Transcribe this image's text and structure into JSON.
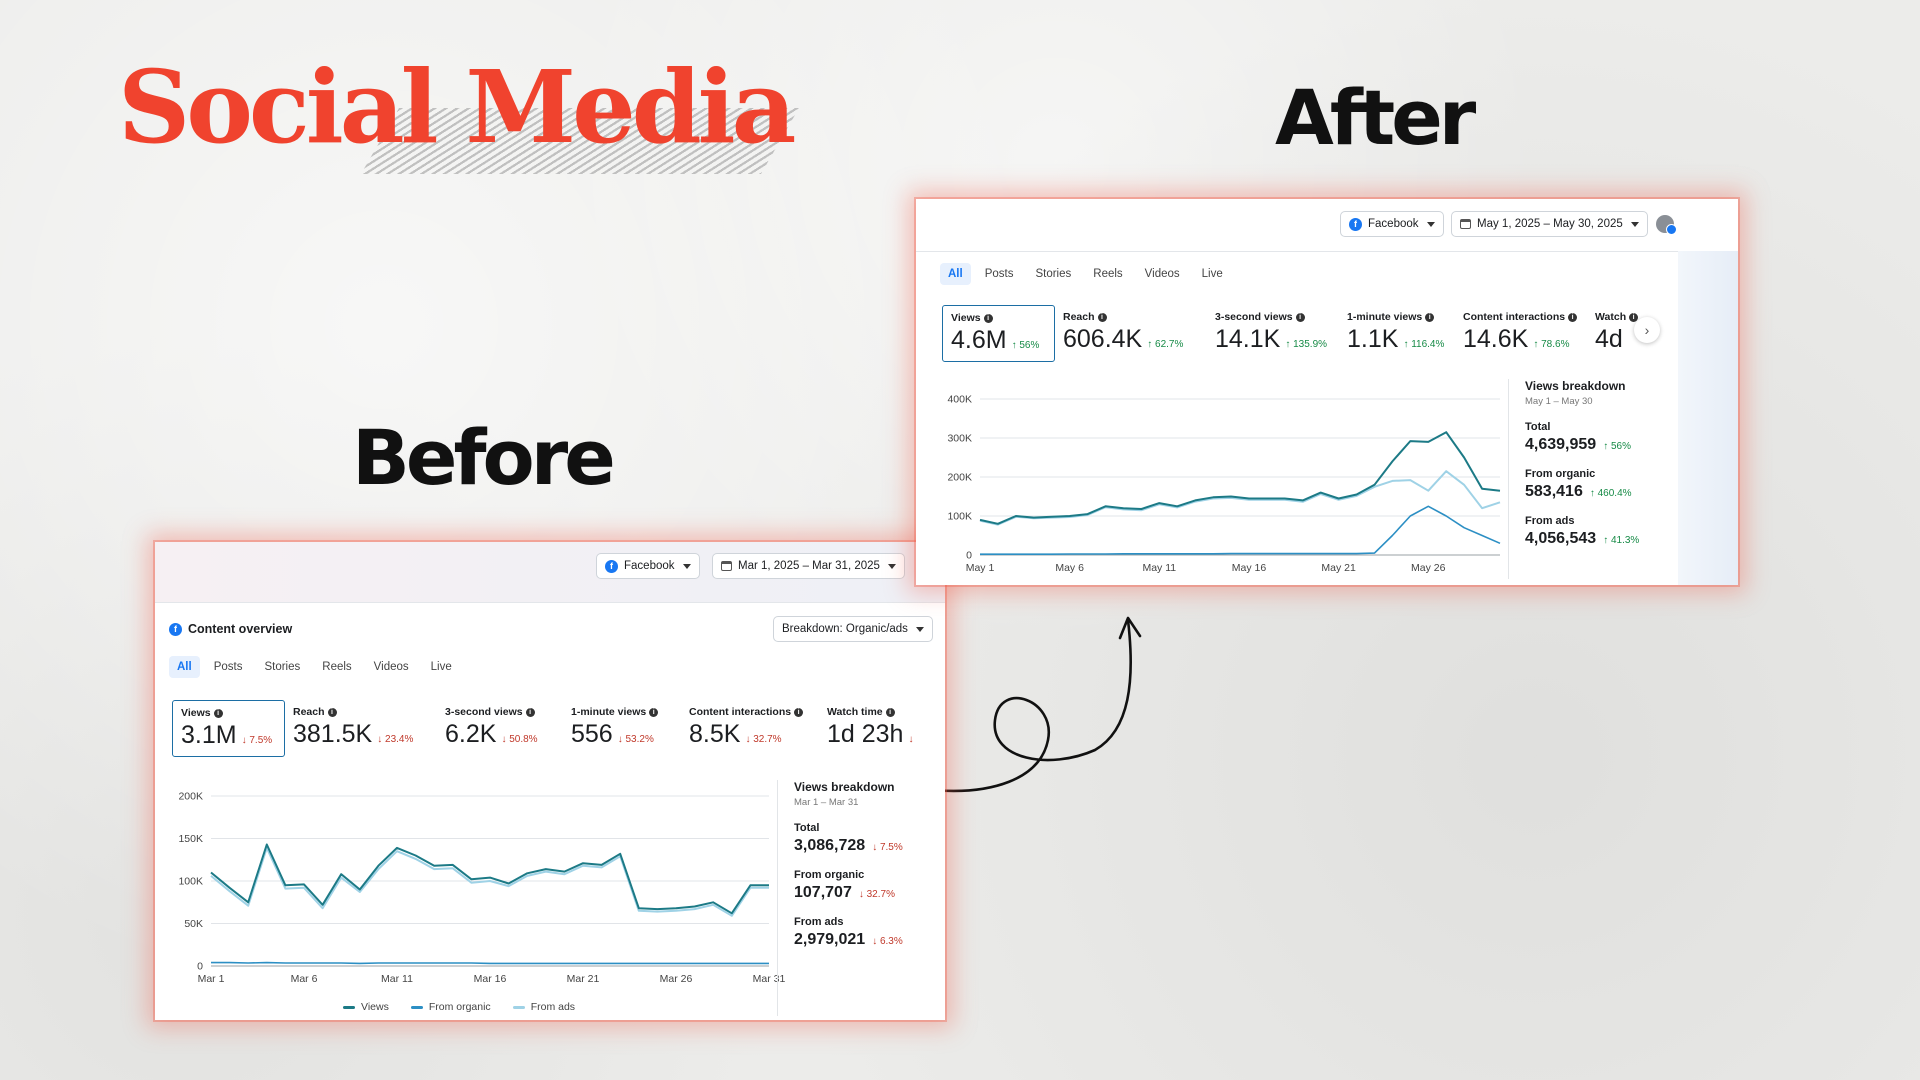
{
  "headline": "Social Media",
  "after_label": "After",
  "before_label": "Before",
  "colors": {
    "accent": "#f0432e",
    "views": "#1c7a86",
    "organic": "#2c8fc4",
    "ads": "#9fd2e6"
  },
  "before": {
    "platform": "Facebook",
    "date_range": "Mar 1, 2025 – Mar 31, 2025",
    "section_title": "Content overview",
    "breakdown_select": "Breakdown: Organic/ads",
    "tabs": [
      "All",
      "Posts",
      "Stories",
      "Reels",
      "Videos",
      "Live"
    ],
    "metrics": [
      {
        "label": "Views",
        "value": "3.1M",
        "change": "↓ 7.5%",
        "dir": "down"
      },
      {
        "label": "Reach",
        "value": "381.5K",
        "change": "↓ 23.4%",
        "dir": "down"
      },
      {
        "label": "3-second views",
        "value": "6.2K",
        "change": "↓ 50.8%",
        "dir": "down"
      },
      {
        "label": "1-minute views",
        "value": "556",
        "change": "↓ 53.2%",
        "dir": "down"
      },
      {
        "label": "Content interactions",
        "value": "8.5K",
        "change": "↓ 32.7%",
        "dir": "down"
      },
      {
        "label": "Watch time",
        "value": "1d 23h",
        "change": "↓",
        "dir": "down"
      }
    ],
    "breakdown": {
      "title": "Views breakdown",
      "range": "Mar 1 – Mar 31",
      "items": [
        {
          "label": "Total",
          "value": "3,086,728",
          "change": "↓ 7.5%",
          "dir": "down"
        },
        {
          "label": "From organic",
          "value": "107,707",
          "change": "↓ 32.7%",
          "dir": "down"
        },
        {
          "label": "From ads",
          "value": "2,979,021",
          "change": "↓ 6.3%",
          "dir": "down"
        }
      ]
    },
    "legend": [
      "Views",
      "From organic",
      "From ads"
    ]
  },
  "after": {
    "platform": "Facebook",
    "date_range": "May 1, 2025 – May 30, 2025",
    "tabs": [
      "All",
      "Posts",
      "Stories",
      "Reels",
      "Videos",
      "Live"
    ],
    "metrics": [
      {
        "label": "Views",
        "value": "4.6M",
        "change": "↑ 56%",
        "dir": "up"
      },
      {
        "label": "Reach",
        "value": "606.4K",
        "change": "↑ 62.7%",
        "dir": "up"
      },
      {
        "label": "3-second views",
        "value": "14.1K",
        "change": "↑ 135.9%",
        "dir": "up"
      },
      {
        "label": "1-minute views",
        "value": "1.1K",
        "change": "↑ 116.4%",
        "dir": "up"
      },
      {
        "label": "Content interactions",
        "value": "14.6K",
        "change": "↑ 78.6%",
        "dir": "up"
      },
      {
        "label": "Watch",
        "value": "4d",
        "change": "",
        "dir": "up"
      }
    ],
    "breakdown": {
      "title": "Views breakdown",
      "range": "May 1 – May 30",
      "items": [
        {
          "label": "Total",
          "value": "4,639,959",
          "change": "↑ 56%",
          "dir": "up"
        },
        {
          "label": "From organic",
          "value": "583,416",
          "change": "↑ 460.4%",
          "dir": "up"
        },
        {
          "label": "From ads",
          "value": "4,056,543",
          "change": "↑ 41.3%",
          "dir": "up"
        }
      ]
    }
  },
  "chart_data": [
    {
      "type": "line",
      "title": "",
      "ylim": [
        0,
        200000
      ],
      "y_ticks": [
        "0",
        "50K",
        "100K",
        "150K",
        "200K"
      ],
      "x_labels": [
        "Mar 1",
        "Mar 6",
        "Mar 11",
        "Mar 16",
        "Mar 21",
        "Mar 26",
        "Mar 31"
      ],
      "x": [
        1,
        2,
        3,
        4,
        5,
        6,
        7,
        8,
        9,
        10,
        11,
        12,
        13,
        14,
        15,
        16,
        17,
        18,
        19,
        20,
        21,
        22,
        23,
        24,
        25,
        26,
        27,
        28,
        29,
        30,
        31
      ],
      "series": [
        {
          "name": "Views",
          "values": [
            110000,
            92000,
            75000,
            143000,
            95000,
            96000,
            72000,
            108000,
            90000,
            118000,
            139000,
            130000,
            118000,
            119000,
            102000,
            104000,
            97000,
            109000,
            114000,
            111000,
            121000,
            119000,
            132000,
            68000,
            67000,
            68000,
            70000,
            75000,
            62000,
            95000,
            95000
          ]
        },
        {
          "name": "From organic",
          "values": [
            4000,
            4000,
            3500,
            4000,
            3500,
            3500,
            3500,
            3500,
            3000,
            3500,
            3500,
            3500,
            3500,
            3500,
            3500,
            3000,
            3000,
            3000,
            3000,
            3000,
            3000,
            3000,
            3000,
            3000,
            3000,
            3000,
            3000,
            3000,
            3000,
            3000,
            3000
          ]
        },
        {
          "name": "From ads",
          "values": [
            106000,
            88000,
            71000,
            139000,
            91000,
            92000,
            68000,
            104000,
            87000,
            114000,
            135000,
            126000,
            114000,
            115000,
            98000,
            100000,
            94000,
            106000,
            111000,
            108000,
            118000,
            116000,
            129000,
            65000,
            64000,
            65000,
            67000,
            72000,
            59000,
            92000,
            92000
          ]
        }
      ]
    },
    {
      "type": "line",
      "title": "",
      "ylim": [
        0,
        400000
      ],
      "y_ticks": [
        "0",
        "100K",
        "200K",
        "300K",
        "400K"
      ],
      "x_labels": [
        "May 1",
        "May 6",
        "May 11",
        "May 16",
        "May 21",
        "May 26"
      ],
      "x": [
        1,
        2,
        3,
        4,
        5,
        6,
        7,
        8,
        9,
        10,
        11,
        12,
        13,
        14,
        15,
        16,
        17,
        18,
        19,
        20,
        21,
        22,
        23,
        24,
        25,
        26,
        27,
        28,
        29,
        30
      ],
      "series": [
        {
          "name": "Views",
          "values": [
            90000,
            80000,
            100000,
            96000,
            98000,
            100000,
            105000,
            125000,
            120000,
            118000,
            133000,
            125000,
            140000,
            148000,
            150000,
            145000,
            145000,
            145000,
            140000,
            160000,
            145000,
            155000,
            180000,
            240000,
            292000,
            290000,
            315000,
            250000,
            170000,
            165000
          ]
        },
        {
          "name": "From organic",
          "values": [
            2000,
            2000,
            2000,
            2000,
            2000,
            2500,
            2500,
            2500,
            3000,
            3000,
            3000,
            3000,
            3000,
            3000,
            3500,
            3500,
            3500,
            3500,
            3500,
            3500,
            3500,
            3500,
            5000,
            50000,
            100000,
            125000,
            100000,
            70000,
            50000,
            30000
          ]
        },
        {
          "name": "From ads",
          "values": [
            88000,
            78000,
            98000,
            94000,
            96000,
            97500,
            102500,
            122500,
            117000,
            115000,
            130000,
            122000,
            137000,
            145000,
            146500,
            141500,
            141500,
            141500,
            136500,
            156500,
            141500,
            151500,
            175000,
            190000,
            192000,
            165000,
            215000,
            180000,
            120000,
            135000
          ]
        }
      ]
    }
  ]
}
